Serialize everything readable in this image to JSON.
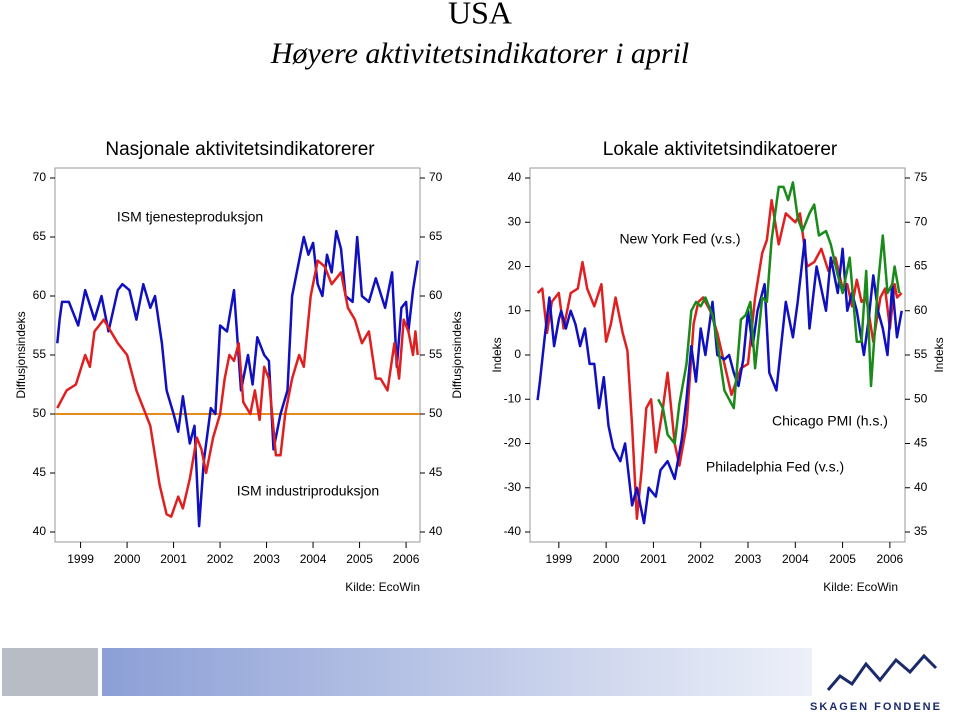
{
  "title": "USA",
  "subtitle": "Høyere aktivitetsindikatorer i april",
  "brand": "SKAGEN FONDENE",
  "chart_data": [
    {
      "type": "line",
      "title": "Nasjonale aktivitetsindikatorerer",
      "ylabel": "Diffusjonsindeks",
      "y2label": "Diffusjonsindeks",
      "source": "Kilde: EcoWin",
      "xlim": [
        1998.45,
        2006.3
      ],
      "xticks": [
        1999,
        2000,
        2001,
        2002,
        2003,
        2004,
        2005,
        2006
      ],
      "ylim": [
        40,
        70
      ],
      "yticks": [
        40,
        45,
        50,
        55,
        60,
        65,
        70
      ],
      "y2lim": [
        40,
        70
      ],
      "y2ticks": [
        40,
        45,
        50,
        55,
        60,
        65,
        70
      ],
      "hlines": [
        {
          "value": 50,
          "color": "#e8891e"
        }
      ],
      "series": [
        {
          "name": "ISM tjenesteproduksjon",
          "color": "#1010c0",
          "x": [
            1998.5,
            1998.55,
            1998.6,
            1998.75,
            1998.95,
            1999.1,
            1999.3,
            1999.45,
            1999.6,
            1999.8,
            1999.9,
            2000.05,
            2000.2,
            2000.35,
            2000.5,
            2000.6,
            2000.75,
            2000.85,
            2001.0,
            2001.1,
            2001.2,
            2001.35,
            2001.45,
            2001.55,
            2001.65,
            2001.8,
            2001.9,
            2002.0,
            2002.15,
            2002.3,
            2002.45,
            2002.6,
            2002.7,
            2002.8,
            2002.95,
            2003.05,
            2003.15,
            2003.3,
            2003.45,
            2003.55,
            2003.7,
            2003.8,
            2003.9,
            2004.0,
            2004.1,
            2004.2,
            2004.3,
            2004.4,
            2004.5,
            2004.6,
            2004.7,
            2004.85,
            2004.95,
            2005.05,
            2005.2,
            2005.35,
            2005.55,
            2005.7,
            2005.8,
            2005.9,
            2006.0,
            2006.05,
            2006.15,
            2006.25
          ],
          "values": [
            56,
            58,
            59.5,
            59.5,
            57.5,
            60.5,
            58,
            60,
            57,
            60.5,
            61,
            60.5,
            58,
            61,
            59,
            60,
            56,
            52,
            50,
            48.5,
            51.5,
            47.5,
            49,
            40.5,
            46,
            50.5,
            50,
            57.5,
            57,
            60.5,
            52,
            55,
            52.5,
            56.5,
            55,
            54.5,
            47,
            50,
            52,
            60,
            63,
            65,
            63.5,
            64.5,
            61,
            60,
            63.5,
            62,
            65.5,
            64,
            60,
            59.5,
            65,
            60,
            59.5,
            61.5,
            59,
            62,
            54,
            59,
            59.5,
            57,
            60.5,
            63
          ]
        },
        {
          "name": "ISM industriproduksjon",
          "color": "#e02020",
          "x": [
            1998.5,
            1998.7,
            1998.9,
            1999.1,
            1999.2,
            1999.3,
            1999.5,
            1999.8,
            2000.0,
            2000.2,
            2000.4,
            2000.5,
            2000.7,
            2000.85,
            2000.95,
            2001.1,
            2001.2,
            2001.35,
            2001.5,
            2001.6,
            2001.7,
            2001.85,
            2002.0,
            2002.1,
            2002.2,
            2002.3,
            2002.4,
            2002.5,
            2002.65,
            2002.75,
            2002.85,
            2002.95,
            2003.05,
            2003.2,
            2003.3,
            2003.4,
            2003.55,
            2003.7,
            2003.8,
            2003.95,
            2004.1,
            2004.25,
            2004.4,
            2004.6,
            2004.75,
            2004.9,
            2005.05,
            2005.2,
            2005.35,
            2005.45,
            2005.6,
            2005.75,
            2005.85,
            2005.95,
            2006.05,
            2006.15,
            2006.2,
            2006.25
          ],
          "values": [
            50.5,
            52,
            52.5,
            55,
            54,
            57,
            58,
            56,
            55,
            52,
            50,
            49,
            44,
            41.5,
            41.3,
            43,
            42,
            44.5,
            48,
            47,
            45,
            48,
            50,
            53,
            55,
            54.5,
            56,
            51,
            50,
            52,
            49.5,
            54,
            53,
            46.5,
            46.5,
            50,
            53,
            55,
            54,
            60,
            63,
            62.5,
            61,
            62,
            59,
            58,
            56,
            57,
            53,
            53,
            52,
            56,
            53,
            58,
            57,
            55,
            57,
            55
          ]
        }
      ]
    },
    {
      "type": "line",
      "title": "Lokale aktivitetsindikatoerer",
      "ylabel": "Indeks",
      "y2label": "Indeks",
      "source": "Kilde: EcoWin",
      "xlim": [
        1998.39,
        2006.32
      ],
      "xticks": [
        1999,
        2000,
        2001,
        2002,
        2003,
        2004,
        2005,
        2006
      ],
      "ylim": [
        -40,
        40
      ],
      "yticks": [
        -40,
        -30,
        -20,
        -10,
        0,
        10,
        20,
        30,
        40
      ],
      "y2lim": [
        35,
        75
      ],
      "y2ticks": [
        35,
        40,
        45,
        50,
        55,
        60,
        65,
        70,
        75
      ],
      "series": [
        {
          "name": "New York Fed (v.s.)",
          "color": "#e02020",
          "x": [
            1998.55,
            1998.65,
            1998.75,
            1998.85,
            1999.0,
            1999.1,
            1999.25,
            1999.4,
            1999.5,
            1999.6,
            1999.75,
            1999.9,
            2000.0,
            2000.1,
            2000.2,
            2000.35,
            2000.45,
            2000.55,
            2000.65,
            2000.75,
            2000.85,
            2000.95,
            2001.05,
            2001.2,
            2001.3,
            2001.45,
            2001.55,
            2001.7,
            2001.85,
            2001.95,
            2002.05,
            2002.2,
            2002.35,
            2002.5,
            2002.65,
            2002.85,
            2003.0,
            2003.15,
            2003.3,
            2003.4,
            2003.5,
            2003.65,
            2003.8,
            2004.0,
            2004.1,
            2004.25,
            2004.4,
            2004.55,
            2004.7,
            2004.85,
            2005.0,
            2005.1,
            2005.2,
            2005.3,
            2005.4,
            2005.5,
            2005.65,
            2005.8,
            2005.9,
            2006.0,
            2006.1,
            2006.15,
            2006.25
          ],
          "values": [
            14,
            15,
            5,
            12,
            14,
            6,
            14,
            15,
            21,
            15,
            11,
            16,
            3,
            7,
            13,
            5,
            1,
            -16,
            -37,
            -26,
            -12,
            -10,
            -22,
            -12,
            -4,
            -20,
            -25,
            -16,
            7,
            12,
            13,
            10,
            5,
            -2,
            -9,
            -3,
            -2,
            13,
            23,
            26,
            35,
            25,
            32,
            30,
            32,
            20,
            21,
            24,
            19,
            22,
            15,
            16,
            11,
            17,
            12,
            13,
            3,
            13,
            15,
            6,
            16,
            13,
            14
          ]
        },
        {
          "name": "Chicago PMI (h.s.)",
          "color": "#1010c0",
          "axis": "y2",
          "x": [
            1998.55,
            1998.6,
            1998.7,
            1998.8,
            1998.9,
            1999.0,
            1999.05,
            1999.15,
            1999.25,
            1999.35,
            1999.45,
            1999.55,
            1999.65,
            1999.75,
            1999.85,
            1999.95,
            2000.05,
            2000.15,
            2000.3,
            2000.4,
            2000.55,
            2000.65,
            2000.8,
            2000.9,
            2001.05,
            2001.15,
            2001.3,
            2001.45,
            2001.6,
            2001.7,
            2001.8,
            2001.9,
            2002.0,
            2002.1,
            2002.25,
            2002.35,
            2002.5,
            2002.6,
            2002.7,
            2002.8,
            2002.9,
            2003.0,
            2003.1,
            2003.2,
            2003.35,
            2003.45,
            2003.6,
            2003.7,
            2003.8,
            2003.95,
            2004.05,
            2004.2,
            2004.3,
            2004.45,
            2004.55,
            2004.65,
            2004.75,
            2004.9,
            2005.0,
            2005.1,
            2005.2,
            2005.3,
            2005.45,
            2005.55,
            2005.65,
            2005.75,
            2005.85,
            2005.95,
            2006.05,
            2006.15,
            2006.25
          ],
          "values": [
            49.9,
            52,
            57,
            61.5,
            56,
            59,
            60,
            58,
            60,
            58.5,
            56,
            58,
            54,
            54,
            49,
            52.5,
            47,
            44.5,
            43,
            45,
            38,
            40,
            36,
            40,
            39,
            42,
            43,
            41,
            45.5,
            50,
            56,
            52,
            58,
            55,
            61,
            55,
            54.5,
            55,
            53,
            51.5,
            54.5,
            60,
            56,
            60,
            63,
            53,
            51,
            56,
            61,
            57,
            61,
            68,
            58,
            65,
            62.5,
            60,
            66,
            62,
            67,
            60,
            62,
            60,
            55,
            59,
            64,
            60,
            58,
            55,
            63,
            57,
            60
          ]
        },
        {
          "name": "Philadelphia Fed (v.s.)",
          "color": "#1a8a1a",
          "x": [
            2001.1,
            2001.2,
            2001.3,
            2001.45,
            2001.55,
            2001.7,
            2001.8,
            2001.9,
            2002.0,
            2002.1,
            2002.25,
            2002.35,
            2002.5,
            2002.6,
            2002.7,
            2002.85,
            2002.95,
            2003.05,
            2003.15,
            2003.3,
            2003.4,
            2003.5,
            2003.65,
            2003.75,
            2003.85,
            2003.95,
            2004.05,
            2004.15,
            2004.3,
            2004.4,
            2004.5,
            2004.65,
            2004.75,
            2004.9,
            2005.0,
            2005.15,
            2005.3,
            2005.4,
            2005.5,
            2005.6,
            2005.75,
            2005.85,
            2005.95,
            2006.05,
            2006.1,
            2006.2
          ],
          "values": [
            -10,
            -12,
            -18,
            -20,
            -11,
            -2,
            10,
            12,
            11,
            13,
            9,
            3,
            -8,
            -10,
            -12,
            8,
            9,
            12,
            -3,
            13,
            12,
            26,
            38,
            38,
            35,
            39,
            31,
            28,
            32,
            34,
            27,
            28,
            25,
            18,
            14,
            22,
            3,
            3,
            19,
            -7,
            16,
            27,
            14,
            16,
            20,
            14
          ]
        }
      ]
    }
  ]
}
